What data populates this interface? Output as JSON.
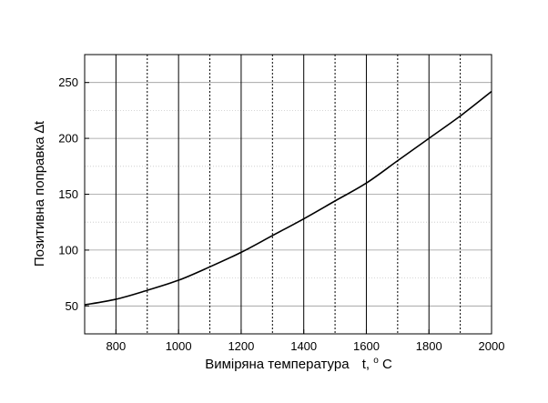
{
  "chart_data": {
    "type": "line",
    "title": "",
    "xlabel_main": "Виміряна температура",
    "xlabel_var": "t,",
    "xlabel_sup": "o",
    "xlabel_unit": "C",
    "ylabel": "Позитивна поправка ∆t",
    "xlim": [
      700,
      2000
    ],
    "ylim": [
      25,
      275
    ],
    "x_ticks": [
      800,
      1000,
      1200,
      1400,
      1600,
      1800,
      2000
    ],
    "y_ticks": [
      50,
      100,
      150,
      200,
      250
    ],
    "x_major_grid": [
      800,
      1000,
      1200,
      1400,
      1600,
      1800
    ],
    "x_minor_grid": [
      900,
      1100,
      1300,
      1500,
      1700,
      1900
    ],
    "y_minor_grid": [
      75,
      125,
      175,
      225
    ],
    "grid": true,
    "series": [
      {
        "color": "#000000",
        "x": [
          700,
          800,
          900,
          1000,
          1100,
          1200,
          1300,
          1400,
          1500,
          1600,
          1700,
          1800,
          1900,
          2000
        ],
        "y": [
          51,
          56,
          64,
          73,
          85,
          98,
          113,
          128,
          144,
          160,
          180,
          200,
          220,
          242
        ]
      }
    ]
  }
}
